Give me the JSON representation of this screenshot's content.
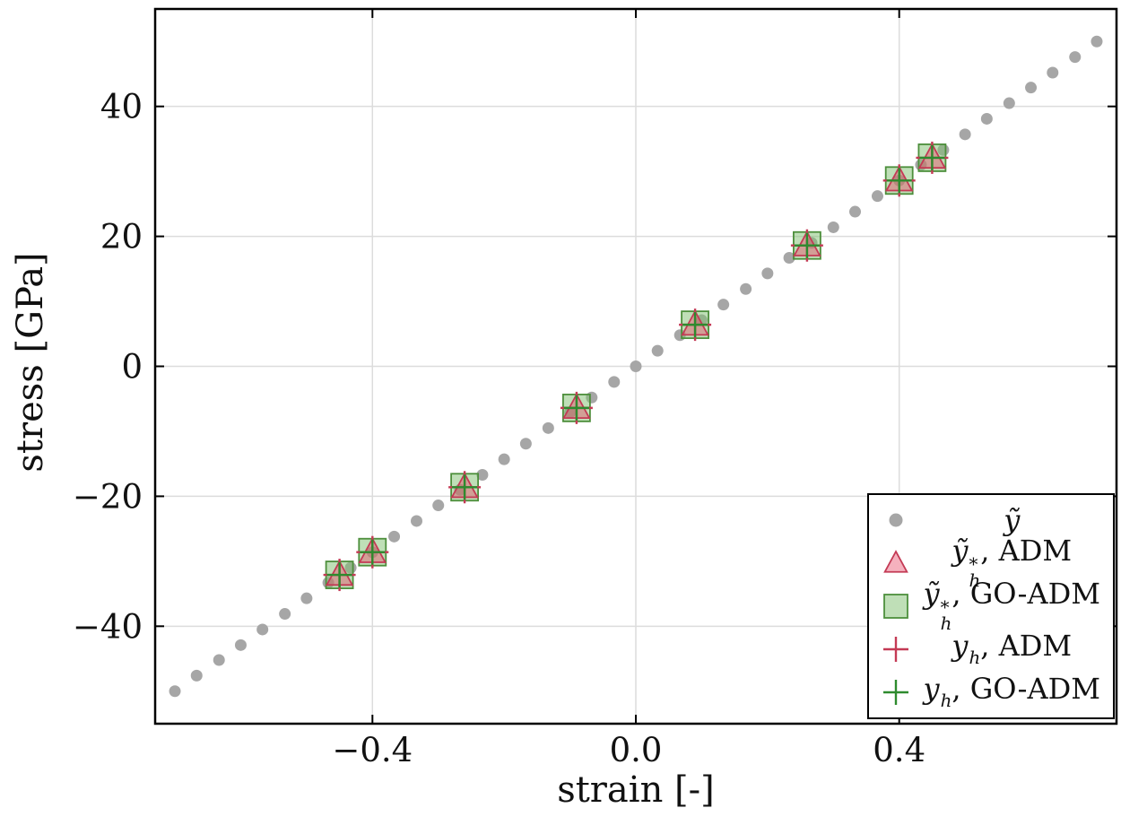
{
  "figure": {
    "background": "#ffffff"
  },
  "chart_data": {
    "type": "scatter",
    "title": "",
    "xlabel": "strain [-]",
    "ylabel": "stress [GPa]",
    "xlim": [
      -0.73,
      0.73
    ],
    "ylim": [
      -55,
      55
    ],
    "xticks": [
      -0.4,
      0.0,
      0.4
    ],
    "xtick_labels": [
      "−0.4",
      "0.0",
      "0.4"
    ],
    "yticks": [
      -40,
      -20,
      0,
      20,
      40
    ],
    "ytick_labels": [
      "−40",
      "−20",
      "0",
      "20",
      "40"
    ],
    "grid": true,
    "grid_color": "#dcdcdc",
    "frame_color": "#000000",
    "tick_color": "#000000",
    "legend_position": "lower right",
    "series": [
      {
        "id": "y-tilde",
        "marker": "dot",
        "zorder": 1,
        "size": 6.5,
        "legend_size": 7.5,
        "color": "#a6a6a6",
        "label": {
          "base": "ỹ",
          "sup": "",
          "sub": "",
          "suffix": ""
        },
        "x": [
          -0.7,
          -0.667,
          -0.633,
          -0.6,
          -0.567,
          -0.533,
          -0.5,
          -0.467,
          -0.433,
          -0.4,
          -0.367,
          -0.333,
          -0.3,
          -0.267,
          -0.233,
          -0.2,
          -0.167,
          -0.133,
          -0.1,
          -0.067,
          -0.033,
          0.0,
          0.033,
          0.067,
          0.1,
          0.133,
          0.167,
          0.2,
          0.233,
          0.267,
          0.3,
          0.333,
          0.367,
          0.4,
          0.433,
          0.467,
          0.5,
          0.533,
          0.567,
          0.6,
          0.633,
          0.667,
          0.7
        ],
        "y": [
          -50.0,
          -47.6,
          -45.2,
          -42.9,
          -40.5,
          -38.1,
          -35.7,
          -33.3,
          -31.0,
          -28.6,
          -26.2,
          -23.8,
          -21.4,
          -19.0,
          -16.7,
          -14.3,
          -11.9,
          -9.5,
          -7.1,
          -4.8,
          -2.4,
          0.0,
          2.4,
          4.8,
          7.1,
          9.5,
          11.9,
          14.3,
          16.7,
          19.0,
          21.4,
          23.8,
          26.2,
          28.6,
          31.0,
          33.3,
          35.7,
          38.1,
          40.5,
          42.9,
          45.2,
          47.6,
          50.0
        ]
      },
      {
        "id": "y-tilde-h-star-adm",
        "marker": "triangle",
        "zorder": 3,
        "size": 15,
        "legend_size": 13,
        "fill": "#e8526e",
        "fill_opacity": 0.45,
        "edge": "#c43a55",
        "label": {
          "base": "ỹ",
          "sup": "*",
          "sub": "h",
          "suffix": ", ADM"
        },
        "x": [
          -0.45,
          -0.4,
          -0.26,
          -0.09,
          0.09,
          0.26,
          0.4,
          0.45
        ],
        "y": [
          -32.1,
          -28.6,
          -18.6,
          -6.4,
          6.4,
          18.6,
          28.6,
          32.1
        ]
      },
      {
        "id": "y-tilde-h-star-go-adm",
        "marker": "square",
        "zorder": 2,
        "size": 15,
        "legend_size": 13,
        "fill": "#7fbf6f",
        "fill_opacity": 0.5,
        "edge": "#4d8f3c",
        "label": {
          "base": "ỹ",
          "sup": "*",
          "sub": "h",
          "suffix": ", GO-ADM"
        },
        "x": [
          -0.45,
          -0.4,
          -0.26,
          -0.09,
          0.09,
          0.26,
          0.4,
          0.45
        ],
        "y": [
          -32.1,
          -28.6,
          -18.6,
          -6.4,
          6.4,
          18.6,
          28.6,
          32.1
        ]
      },
      {
        "id": "y-h-adm",
        "marker": "plus",
        "zorder": 4,
        "size": 18,
        "legend_size": 14,
        "color": "#c43a55",
        "label": {
          "base": "y",
          "sup": "",
          "sub": "h",
          "suffix": ", ADM"
        },
        "x": [
          -0.45,
          -0.4,
          -0.26,
          -0.09,
          0.09,
          0.26,
          0.4,
          0.45
        ],
        "y": [
          -32.1,
          -28.6,
          -18.6,
          -6.4,
          6.4,
          18.6,
          28.6,
          32.1
        ]
      },
      {
        "id": "y-h-go-adm",
        "marker": "plus",
        "zorder": 5,
        "size": 14,
        "legend_size": 14,
        "color": "#2e8b2e",
        "label": {
          "base": "y",
          "sup": "",
          "sub": "h",
          "suffix": ", GO-ADM"
        },
        "x": [
          -0.45,
          -0.4,
          -0.26,
          -0.09,
          0.09,
          0.26,
          0.4,
          0.45
        ],
        "y": [
          -32.1,
          -28.6,
          -18.6,
          -6.4,
          6.4,
          18.6,
          28.6,
          32.1
        ]
      }
    ]
  }
}
